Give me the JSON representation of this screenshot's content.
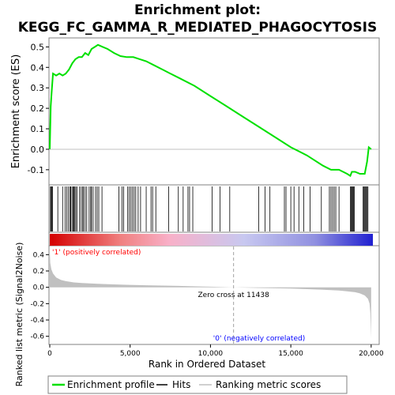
{
  "title_line1": "Enrichment plot:",
  "title_line2": "KEGG_FC_GAMMA_R_MEDIATED_PHAGOCYTOSIS",
  "colors": {
    "profile": "#00e000",
    "hits": "#000000",
    "metric_fill": "#c0c0c0",
    "zero_line": "#808080",
    "positive_label": "#ff0000",
    "negative_label": "#0000ff",
    "frame": "#808080"
  },
  "chart_data": [
    {
      "type": "line",
      "name": "enrichment-profile",
      "ylabel": "Enrichment score (ES)",
      "xlim": [
        0,
        20500
      ],
      "ylim": [
        -0.17,
        0.54
      ],
      "y_ticks": [
        -0.1,
        0.0,
        0.1,
        0.2,
        0.3,
        0.4,
        0.5
      ],
      "y_tick_labels": [
        "-0.1",
        "0.0",
        "0.1",
        "0.2",
        "0.3",
        "0.4",
        "0.5"
      ],
      "grid": false,
      "x": [
        0,
        60,
        120,
        200,
        400,
        600,
        800,
        1000,
        1200,
        1400,
        1600,
        1800,
        2000,
        2200,
        2400,
        2600,
        2800,
        3000,
        3300,
        3600,
        4000,
        4400,
        4800,
        5200,
        5600,
        6000,
        6500,
        7000,
        7500,
        8000,
        9000,
        10000,
        11000,
        12000,
        13000,
        14000,
        15000,
        16000,
        17000,
        17500,
        18000,
        18500,
        18700,
        18800,
        19000,
        19300,
        19600,
        19700,
        19750,
        19850,
        20000
      ],
      "y": [
        0.0,
        0.21,
        0.28,
        0.37,
        0.36,
        0.37,
        0.36,
        0.37,
        0.39,
        0.42,
        0.44,
        0.45,
        0.45,
        0.47,
        0.46,
        0.49,
        0.5,
        0.51,
        0.5,
        0.49,
        0.47,
        0.455,
        0.45,
        0.45,
        0.44,
        0.43,
        0.41,
        0.39,
        0.37,
        0.35,
        0.31,
        0.26,
        0.21,
        0.16,
        0.11,
        0.06,
        0.01,
        -0.03,
        -0.08,
        -0.1,
        -0.1,
        -0.12,
        -0.13,
        -0.11,
        -0.11,
        -0.12,
        -0.12,
        -0.08,
        -0.06,
        0.01,
        0.0
      ]
    },
    {
      "type": "hits",
      "name": "hits",
      "positions": [
        40,
        90,
        130,
        170,
        500,
        800,
        950,
        1050,
        1150,
        1250,
        1300,
        1380,
        1450,
        1500,
        1560,
        1620,
        1700,
        1850,
        1950,
        2050,
        2100,
        2200,
        2300,
        2450,
        2550,
        2600,
        2700,
        2850,
        2950,
        3050,
        3250,
        4300,
        4500,
        4600,
        4850,
        4950,
        5050,
        5150,
        5250,
        5350,
        5500,
        5650,
        6000,
        6300,
        6400,
        6600,
        7400,
        8000,
        8300,
        8600,
        8700,
        8900,
        10100,
        10600,
        11200,
        13000,
        13400,
        13700,
        14600,
        14700,
        15000,
        15200,
        15500,
        15800,
        16200,
        16900,
        17400,
        17500,
        17600,
        17700,
        17800,
        18000,
        18700,
        18750,
        18800,
        18850,
        18900,
        18950,
        19500,
        19550,
        19600,
        19650,
        19700,
        19750,
        19800
      ]
    },
    {
      "type": "area",
      "name": "ranked-list-metric",
      "ylabel": "Ranked list metric (Signal2Noise)",
      "xlabel": "Rank in Ordered Dataset",
      "xlim": [
        0,
        20500
      ],
      "ylim": [
        -0.69,
        0.5
      ],
      "y_ticks": [
        -0.6,
        -0.4,
        -0.2,
        0.0,
        0.2,
        0.4
      ],
      "y_tick_labels": [
        "-0.6",
        "-0.4",
        "-0.2",
        "0.0",
        "0.2",
        "0.4"
      ],
      "x_ticks": [
        0,
        5000,
        10000,
        15000,
        20000
      ],
      "x_tick_labels": [
        "0",
        "5,000",
        "10,000",
        "15,000",
        "20,000"
      ],
      "x": [
        0,
        30,
        100,
        200,
        400,
        700,
        1000,
        1500,
        2000,
        3000,
        4000,
        5000,
        6000,
        8000,
        10000,
        11438,
        13000,
        15000,
        16000,
        17000,
        18000,
        18500,
        19000,
        19300,
        19600,
        19800,
        19900,
        19950,
        20000
      ],
      "values": [
        0.45,
        0.3,
        0.22,
        0.17,
        0.12,
        0.09,
        0.075,
        0.06,
        0.052,
        0.043,
        0.036,
        0.03,
        0.025,
        0.017,
        0.008,
        0.0,
        -0.008,
        -0.016,
        -0.022,
        -0.03,
        -0.04,
        -0.05,
        -0.06,
        -0.075,
        -0.1,
        -0.14,
        -0.2,
        -0.32,
        -0.62
      ],
      "zero_cross_label": "Zero cross at 11438",
      "zero_cross": 11438,
      "positive_label": "'1' (positively correlated)",
      "negative_label": "'0' (negatively correlated)"
    }
  ],
  "legend": {
    "entries": [
      {
        "label": "Enrichment profile"
      },
      {
        "label": "Hits"
      },
      {
        "label": "Ranking metric scores"
      }
    ]
  }
}
